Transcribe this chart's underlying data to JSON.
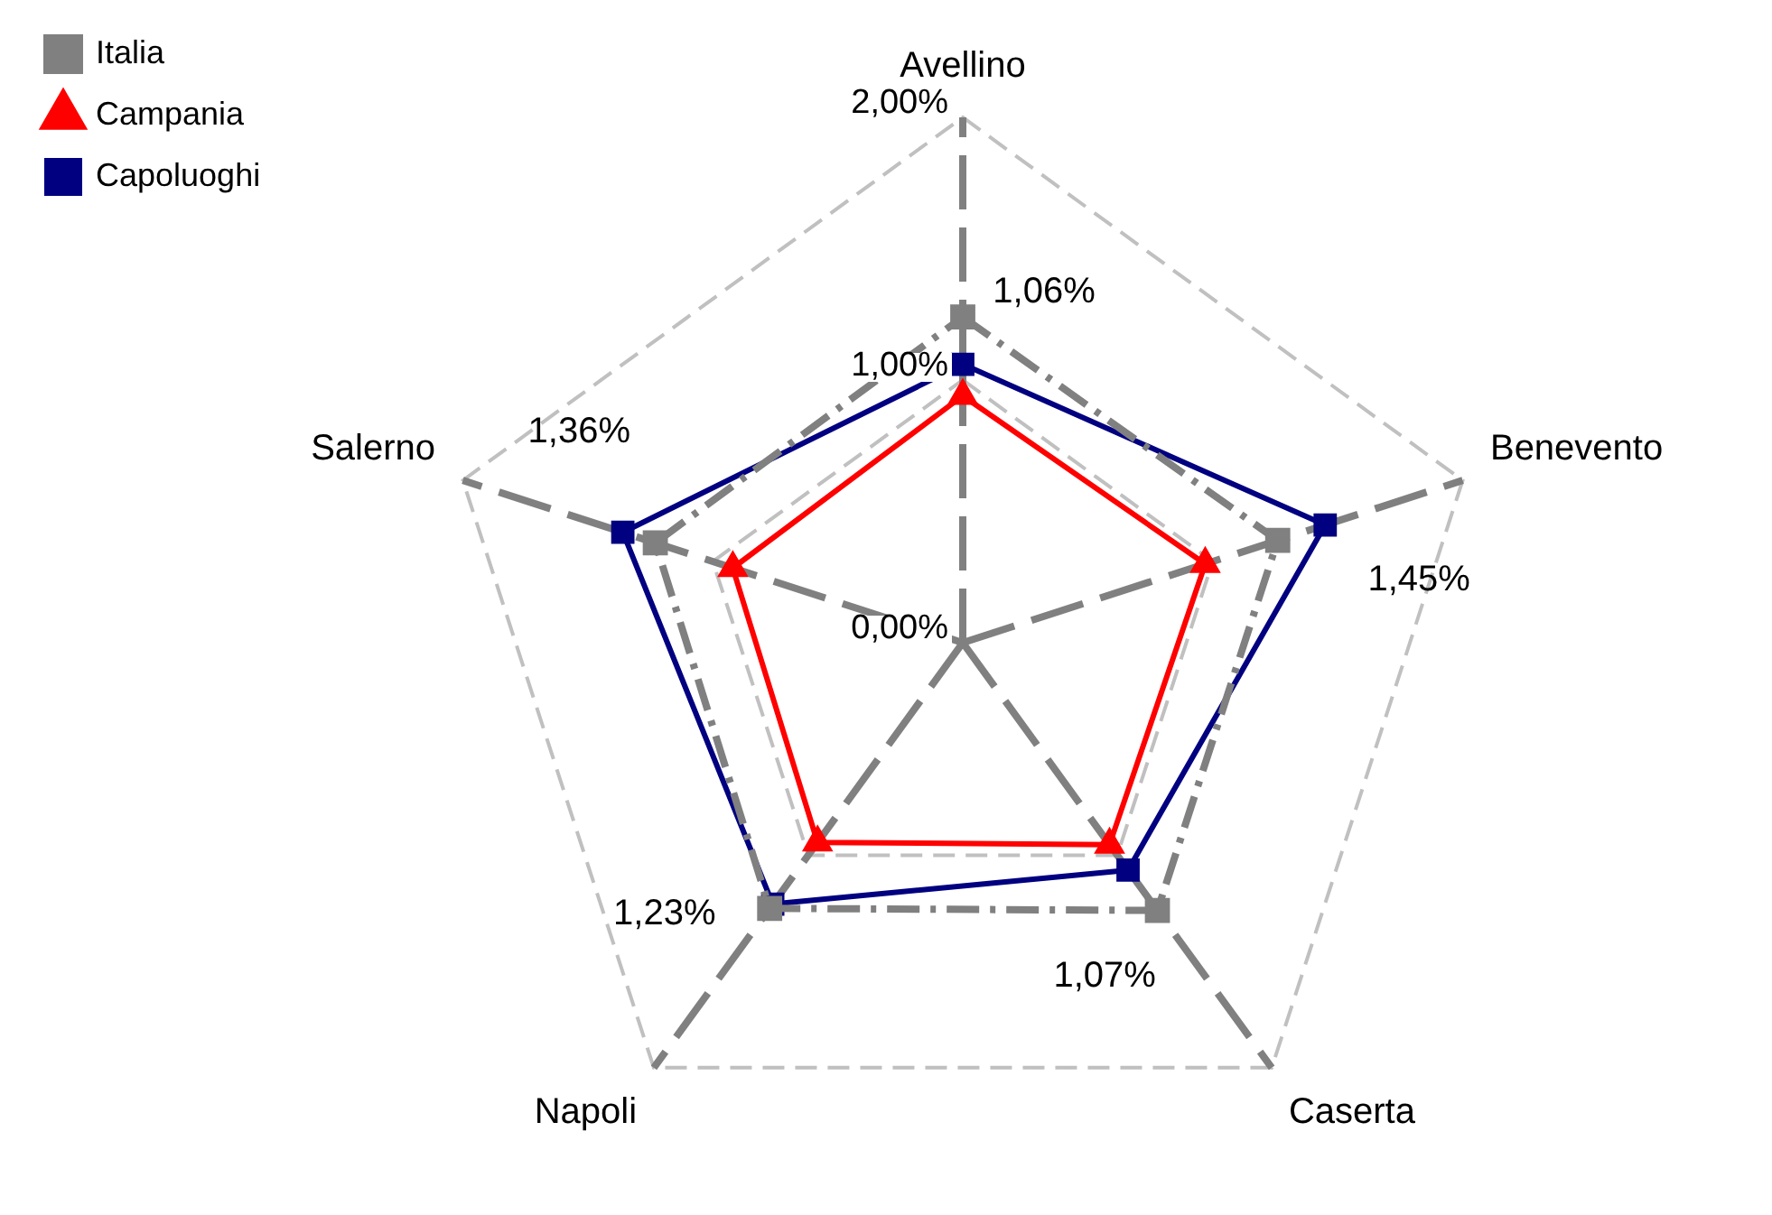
{
  "chart_data": {
    "type": "radar",
    "categories": [
      "Avellino",
      "Benevento",
      "Caserta",
      "Napoli",
      "Salerno"
    ],
    "ylim": [
      0,
      2
    ],
    "yticks": [
      {
        "value": 0,
        "label": "0,00%"
      },
      {
        "value": 1,
        "label": "1,00%"
      },
      {
        "value": 2,
        "label": "2,00%"
      }
    ],
    "legend": "top left",
    "grid": true,
    "series": [
      {
        "name": "Italia",
        "color": "#808080",
        "values": [
          1.24,
          1.26,
          1.26,
          1.25,
          1.23
        ],
        "marker": "square",
        "line_style": "dashdot"
      },
      {
        "name": "Campania",
        "color": "#ff0000",
        "values": [
          0.94,
          0.97,
          0.95,
          0.94,
          0.92
        ],
        "marker": "triangle",
        "line_style": "solid"
      },
      {
        "name": "Capoluoghi",
        "color": "#000080",
        "values": [
          1.06,
          1.45,
          1.07,
          1.23,
          1.36
        ],
        "marker": "square",
        "line_style": "solid",
        "value_labels": [
          "1,06%",
          "1,45%",
          "1,07%",
          "1,23%",
          "1,36%"
        ]
      }
    ]
  }
}
